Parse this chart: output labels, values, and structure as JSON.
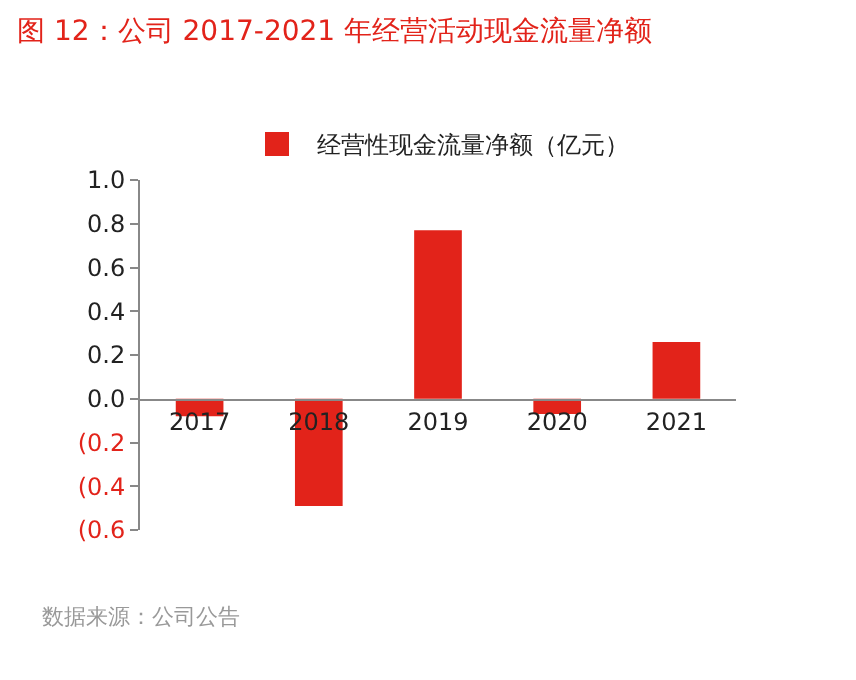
{
  "chart_data": {
    "type": "bar",
    "title": "图 12：公司 2017-2021 年经营活动现金流量净额",
    "categories": [
      "2017",
      "2018",
      "2019",
      "2020",
      "2021"
    ],
    "series": [
      {
        "name": "经营性现金流量净额（亿元）",
        "color": "#e2231a",
        "values": [
          -0.08,
          -0.49,
          0.77,
          -0.07,
          0.26
        ]
      }
    ],
    "ylim": [
      -0.6,
      1.0
    ],
    "yticks": [
      {
        "value": -0.6,
        "label": "(0.6"
      },
      {
        "value": -0.4,
        "label": "(0.4"
      },
      {
        "value": -0.2,
        "label": "(0.2"
      },
      {
        "value": 0,
        "label": "0.0"
      },
      {
        "value": 0.2,
        "label": "0.2"
      },
      {
        "value": 0.4,
        "label": "0.4"
      },
      {
        "value": 0.6,
        "label": "0.6"
      },
      {
        "value": 0.8,
        "label": "0.8"
      },
      {
        "value": 1.0,
        "label": "1.0"
      }
    ],
    "grid": false,
    "legend": "top",
    "annotations": [
      "数据来源：公司公告"
    ]
  }
}
